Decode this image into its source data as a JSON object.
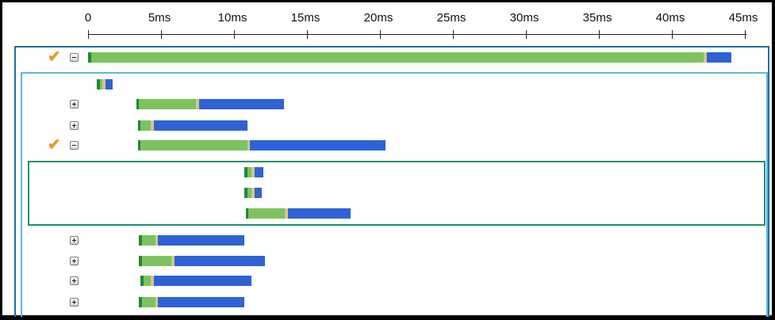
{
  "timeline": {
    "axis": {
      "unit": "ms",
      "ticks": [
        {
          "value": 0,
          "label": "0"
        },
        {
          "value": 5,
          "label": "5ms"
        },
        {
          "value": 10,
          "label": "10ms"
        },
        {
          "value": 15,
          "label": "15ms"
        },
        {
          "value": 20,
          "label": "20ms"
        },
        {
          "value": 25,
          "label": "25ms"
        },
        {
          "value": 30,
          "label": "30ms"
        },
        {
          "value": 35,
          "label": "35ms"
        },
        {
          "value": 40,
          "label": "40ms"
        },
        {
          "value": 45,
          "label": "45ms"
        }
      ]
    },
    "colors": {
      "stalled": "#1e8a36",
      "waiting": "#7cc35f",
      "request_sent": "#d9c48a",
      "receiving": "#2f62d4",
      "check": "#e89a2a",
      "outer_group": "#1f6fa6",
      "inner_group": "#5fb4e8",
      "sub_group": "#1a9178"
    },
    "rows": [
      {
        "toggle": "collapse",
        "checked": true,
        "segments": [
          {
            "kind": "stalled",
            "start": 0.0,
            "end": 0.2
          },
          {
            "kind": "waiting",
            "start": 0.2,
            "end": 42.2
          },
          {
            "kind": "request_sent",
            "start": 42.2,
            "end": 42.4
          },
          {
            "kind": "receiving",
            "start": 42.4,
            "end": 44.1
          }
        ]
      },
      {
        "toggle": null,
        "checked": false,
        "segments": [
          {
            "kind": "stalled",
            "start": 0.6,
            "end": 0.8
          },
          {
            "kind": "waiting",
            "start": 0.8,
            "end": 1.0
          },
          {
            "kind": "request_sent",
            "start": 1.0,
            "end": 1.2
          },
          {
            "kind": "receiving",
            "start": 1.2,
            "end": 1.7
          }
        ]
      },
      {
        "toggle": "expand",
        "checked": false,
        "segments": [
          {
            "kind": "stalled",
            "start": 3.3,
            "end": 3.5
          },
          {
            "kind": "waiting",
            "start": 3.5,
            "end": 7.4
          },
          {
            "kind": "request_sent",
            "start": 7.4,
            "end": 7.6
          },
          {
            "kind": "receiving",
            "start": 7.6,
            "end": 13.4
          }
        ]
      },
      {
        "toggle": "expand",
        "checked": false,
        "segments": [
          {
            "kind": "stalled",
            "start": 3.4,
            "end": 3.6
          },
          {
            "kind": "waiting",
            "start": 3.6,
            "end": 4.3
          },
          {
            "kind": "request_sent",
            "start": 4.3,
            "end": 4.5
          },
          {
            "kind": "receiving",
            "start": 4.5,
            "end": 10.9
          }
        ]
      },
      {
        "toggle": "collapse",
        "checked": true,
        "segments": [
          {
            "kind": "stalled",
            "start": 3.4,
            "end": 3.6
          },
          {
            "kind": "waiting",
            "start": 3.6,
            "end": 10.9
          },
          {
            "kind": "request_sent",
            "start": 10.9,
            "end": 11.1
          },
          {
            "kind": "receiving",
            "start": 11.1,
            "end": 20.4
          }
        ]
      },
      {
        "toggle": null,
        "checked": false,
        "segments": [
          {
            "kind": "stalled",
            "start": 10.7,
            "end": 10.9
          },
          {
            "kind": "waiting",
            "start": 10.9,
            "end": 11.2
          },
          {
            "kind": "request_sent",
            "start": 11.2,
            "end": 11.4
          },
          {
            "kind": "receiving",
            "start": 11.4,
            "end": 12.0
          }
        ]
      },
      {
        "toggle": null,
        "checked": false,
        "segments": [
          {
            "kind": "stalled",
            "start": 10.7,
            "end": 10.9
          },
          {
            "kind": "waiting",
            "start": 10.9,
            "end": 11.2
          },
          {
            "kind": "request_sent",
            "start": 11.2,
            "end": 11.4
          },
          {
            "kind": "receiving",
            "start": 11.4,
            "end": 11.9
          }
        ]
      },
      {
        "toggle": null,
        "checked": false,
        "segments": [
          {
            "kind": "stalled",
            "start": 10.8,
            "end": 11.0
          },
          {
            "kind": "waiting",
            "start": 11.0,
            "end": 13.5
          },
          {
            "kind": "request_sent",
            "start": 13.5,
            "end": 13.7
          },
          {
            "kind": "receiving",
            "start": 13.7,
            "end": 18.0
          }
        ]
      },
      {
        "toggle": "expand",
        "checked": false,
        "segments": [
          {
            "kind": "stalled",
            "start": 3.5,
            "end": 3.7
          },
          {
            "kind": "waiting",
            "start": 3.7,
            "end": 4.6
          },
          {
            "kind": "request_sent",
            "start": 4.6,
            "end": 4.8
          },
          {
            "kind": "receiving",
            "start": 4.8,
            "end": 10.7
          }
        ]
      },
      {
        "toggle": "expand",
        "checked": false,
        "segments": [
          {
            "kind": "stalled",
            "start": 3.5,
            "end": 3.7
          },
          {
            "kind": "waiting",
            "start": 3.7,
            "end": 5.7
          },
          {
            "kind": "request_sent",
            "start": 5.7,
            "end": 5.9
          },
          {
            "kind": "receiving",
            "start": 5.9,
            "end": 12.1
          }
        ]
      },
      {
        "toggle": "expand",
        "checked": false,
        "segments": [
          {
            "kind": "stalled",
            "start": 3.6,
            "end": 3.8
          },
          {
            "kind": "waiting",
            "start": 3.8,
            "end": 4.3
          },
          {
            "kind": "request_sent",
            "start": 4.3,
            "end": 4.5
          },
          {
            "kind": "receiving",
            "start": 4.5,
            "end": 11.2
          }
        ]
      },
      {
        "toggle": "expand",
        "checked": false,
        "segments": [
          {
            "kind": "stalled",
            "start": 3.5,
            "end": 3.7
          },
          {
            "kind": "waiting",
            "start": 3.7,
            "end": 4.6
          },
          {
            "kind": "request_sent",
            "start": 4.6,
            "end": 4.8
          },
          {
            "kind": "receiving",
            "start": 4.8,
            "end": 10.7
          }
        ]
      }
    ]
  }
}
